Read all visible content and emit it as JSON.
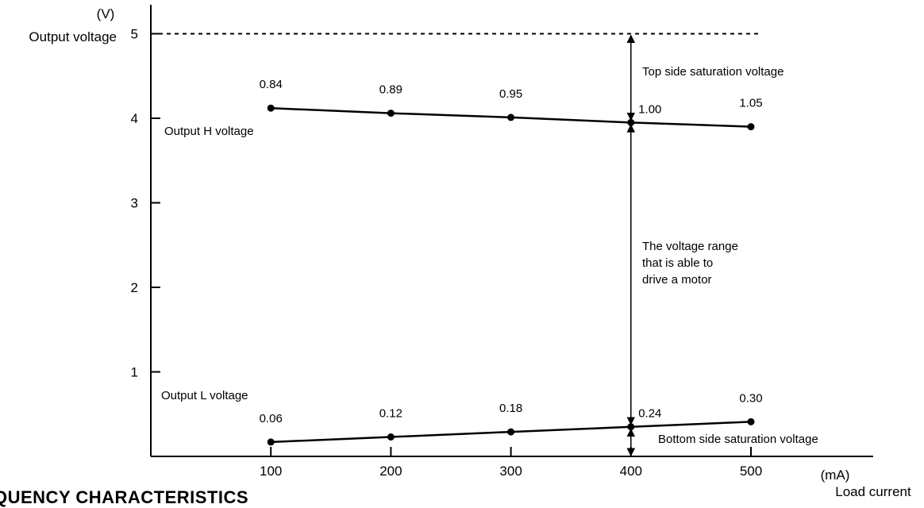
{
  "chart_data": {
    "type": "line",
    "ylabel": "Output voltage",
    "yunit": "(V)",
    "xlabel": "Load current",
    "xunit": "(mA)",
    "xlim": [
      0,
      560
    ],
    "ylim": [
      0,
      5.35
    ],
    "x_ticks": [
      100,
      200,
      300,
      400,
      500
    ],
    "y_ticks": [
      1,
      2,
      3,
      4,
      5
    ],
    "supply_voltage": 5,
    "series": [
      {
        "name": "Output H voltage",
        "x": [
          100,
          200,
          300,
          400,
          500
        ],
        "y": [
          4.12,
          4.06,
          4.01,
          3.95,
          3.9
        ],
        "point_labels": [
          "0.84",
          "0.89",
          "0.95",
          "1.00",
          "1.05"
        ]
      },
      {
        "name": "Output L voltage",
        "x": [
          100,
          200,
          300,
          400,
          500
        ],
        "y": [
          0.17,
          0.23,
          0.29,
          0.35,
          0.41
        ],
        "point_labels": [
          "0.06",
          "0.12",
          "0.18",
          "0.24",
          "0.30"
        ]
      }
    ],
    "annotations": {
      "top": "Top side saturation voltage",
      "range": [
        "The voltage range",
        "that is able to",
        "drive a motor"
      ],
      "bottom": "Bottom side saturation voltage"
    },
    "grid": false
  },
  "section_heading": "QUENCY CHARACTERISTICS"
}
